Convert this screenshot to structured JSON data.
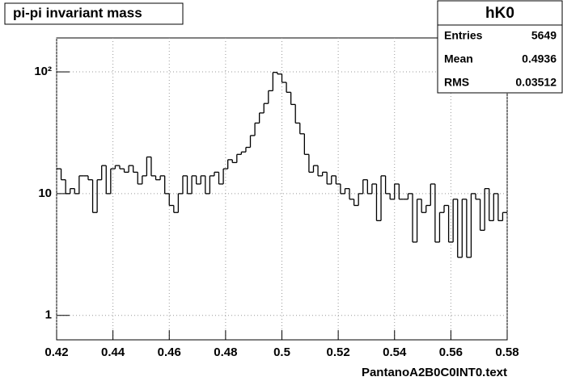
{
  "chart_data": {
    "type": "histogram",
    "title": "pi-pi invariant mass",
    "x_label": "PantanoA2B0C0INT0.text",
    "bins": [
      0.42,
      0.4216,
      0.4232,
      0.4248,
      0.4264,
      0.428,
      0.4296,
      0.4312,
      0.4328,
      0.4344,
      0.436,
      0.4376,
      0.4392,
      0.4408,
      0.4424,
      0.444,
      0.4456,
      0.4472,
      0.4488,
      0.4504,
      0.452,
      0.4536,
      0.4552,
      0.4568,
      0.4584,
      0.46,
      0.4616,
      0.4632,
      0.4648,
      0.4664,
      0.468,
      0.4696,
      0.4712,
      0.4728,
      0.4744,
      0.476,
      0.4776,
      0.4792,
      0.4808,
      0.4824,
      0.484,
      0.4856,
      0.4872,
      0.4888,
      0.4904,
      0.492,
      0.4936,
      0.4952,
      0.4968,
      0.4984,
      0.5,
      0.5016,
      0.5032,
      0.5048,
      0.5064,
      0.508,
      0.5096,
      0.5112,
      0.5128,
      0.5144,
      0.516,
      0.5176,
      0.5192,
      0.5208,
      0.5224,
      0.524,
      0.5256,
      0.5272,
      0.5288,
      0.5304,
      0.532,
      0.5336,
      0.5352,
      0.5368,
      0.5384,
      0.54,
      0.5416,
      0.5432,
      0.5448,
      0.5464,
      0.548,
      0.5496,
      0.5512,
      0.5528,
      0.5544,
      0.556,
      0.5576,
      0.5592,
      0.5608,
      0.5624,
      0.564,
      0.5656,
      0.5672,
      0.5688,
      0.5704,
      0.572,
      0.5736,
      0.5752,
      0.5768,
      0.5784,
      0.58
    ],
    "values": [
      16,
      13,
      10,
      11,
      10,
      14,
      14,
      13,
      7,
      13,
      17,
      10,
      16,
      17,
      16,
      15,
      17,
      15,
      12,
      14,
      20,
      14,
      13,
      14,
      10,
      8,
      7,
      10,
      14,
      10,
      14,
      12,
      14,
      10,
      14,
      15,
      12,
      16,
      19,
      18,
      21,
      22,
      24,
      30,
      38,
      46,
      55,
      70,
      99,
      96,
      82,
      68,
      54,
      38,
      31,
      21,
      15,
      17,
      14,
      15,
      12,
      14,
      12,
      10,
      11,
      9,
      8,
      10,
      13,
      10,
      12,
      6,
      14,
      10,
      9,
      12,
      9,
      9,
      10,
      4,
      9,
      7,
      8,
      12,
      4,
      7,
      8,
      4,
      9,
      3,
      9,
      3,
      10,
      9,
      5,
      11,
      6,
      10,
      6,
      7
    ],
    "color": "#000000",
    "xlim": [
      0.42,
      0.58
    ],
    "xticks": [
      0.42,
      0.44,
      0.46,
      0.48,
      0.5,
      0.52,
      0.54,
      0.56,
      0.58
    ],
    "ylim": [
      0.63,
      190
    ],
    "log_y": true,
    "yticks": [
      1,
      10,
      {
        "value": 100,
        "label": "10²"
      }
    ],
    "grid": true,
    "stats": {
      "title": "hK0",
      "rows": [
        {
          "label": "Entries",
          "value": 5649
        },
        {
          "label": "Mean",
          "value": 0.4936
        },
        {
          "label": "RMS",
          "value": 0.03512
        }
      ]
    }
  }
}
